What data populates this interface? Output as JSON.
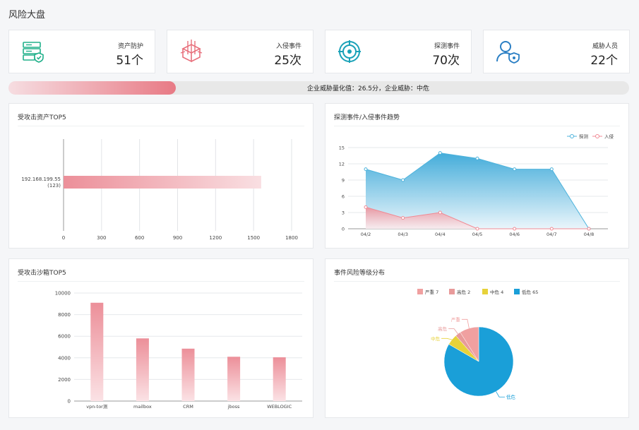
{
  "page_title": "风险大盘",
  "cards": [
    {
      "label": "资产防护",
      "value": "51个",
      "icon": "server-shield-icon"
    },
    {
      "label": "入侵事件",
      "value": "25次",
      "icon": "intrusion-box-icon"
    },
    {
      "label": "探测事件",
      "value": "70次",
      "icon": "target-scan-icon"
    },
    {
      "label": "威胁人员",
      "value": "22个",
      "icon": "user-shield-icon"
    }
  ],
  "threat": {
    "text": "企业威胁量化值：26.5分，企业威胁：中危",
    "score": 26.5,
    "level": "中危",
    "fill_fraction": 0.27
  },
  "colors": {
    "accent_red": "#e87a85",
    "accent_blue": "#1a9fd8",
    "accent_yellow": "#e7d23a",
    "accent_pink": "#f0a0a0"
  },
  "panels": {
    "asset_top5": {
      "title": "受攻击资产TOP5"
    },
    "trend": {
      "title": "探测事件/入侵事件趋势"
    },
    "sandbox_top5": {
      "title": "受攻击沙箱TOP5"
    },
    "risk_dist": {
      "title": "事件风险等级分布"
    }
  },
  "chart_data": [
    {
      "id": "asset_top5",
      "type": "bar",
      "orientation": "horizontal",
      "categories": [
        "192.168.199.55\n(123)"
      ],
      "category_lines": [
        [
          "192.168.199.55",
          "(123)"
        ]
      ],
      "values": [
        1560
      ],
      "xlim": [
        0,
        1800
      ],
      "xticks": [
        0,
        300,
        600,
        900,
        1200,
        1500,
        1800
      ],
      "grid": true
    },
    {
      "id": "trend",
      "type": "area",
      "categories": [
        "04/2",
        "04/3",
        "04/4",
        "04/5",
        "04/6",
        "04/7",
        "04/8"
      ],
      "series": [
        {
          "name": "探测",
          "values": [
            11,
            9,
            14,
            13,
            11,
            11,
            0
          ],
          "color": "#4db3dc"
        },
        {
          "name": "入侵",
          "values": [
            4,
            2,
            3,
            0,
            0,
            0,
            0
          ],
          "color": "#f08a94"
        }
      ],
      "ylim": [
        0,
        15
      ],
      "yticks": [
        0,
        3,
        6,
        9,
        12,
        15
      ],
      "legend": "top-right",
      "grid": true
    },
    {
      "id": "sandbox_top5",
      "type": "bar",
      "categories": [
        "vpn-tor测",
        "mailbox",
        "CRM",
        "jboss",
        "WEBLOGIC"
      ],
      "values": [
        9100,
        5800,
        4850,
        4100,
        4050
      ],
      "ylim": [
        0,
        10000
      ],
      "yticks": [
        0,
        2000,
        4000,
        6000,
        8000,
        10000
      ],
      "grid": true
    },
    {
      "id": "risk_dist",
      "type": "pie",
      "slices": [
        {
          "name": "严重",
          "value": 7,
          "color": "#f0a0a0",
          "legend": "严重  7"
        },
        {
          "name": "高危",
          "value": 2,
          "color": "#e89a9a",
          "legend": "高危  2"
        },
        {
          "name": "中危",
          "value": 4,
          "color": "#e7d23a",
          "legend": "中危  4"
        },
        {
          "name": "低危",
          "value": 65,
          "color": "#1a9fd8",
          "legend": "低危  65"
        }
      ],
      "legend": "top-center"
    }
  ]
}
